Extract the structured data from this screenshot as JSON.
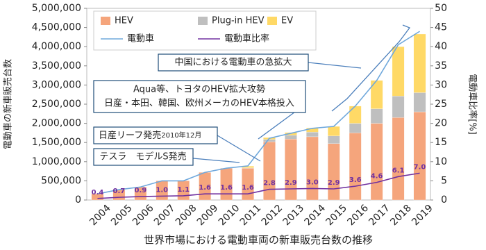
{
  "chart_data": {
    "type": "bar",
    "title": "世界市場における電動車両の新車販売台数の推移",
    "y_label": "電動車の新車販売台数",
    "y2_label": "電動車比率[%]",
    "categories": [
      "2004",
      "2005",
      "2006",
      "2007",
      "2008",
      "2009",
      "2010",
      "2011",
      "2012",
      "2013",
      "2014",
      "2015",
      "2016",
      "2017",
      "2018",
      "2019"
    ],
    "series": [
      {
        "name": "HEV",
        "type": "bar",
        "color": "#f5a57c",
        "values": [
          160000,
          270000,
          340000,
          500000,
          500000,
          720000,
          830000,
          830000,
          1520000,
          1590000,
          1650000,
          1470000,
          1750000,
          2000000,
          2150000,
          2300000
        ]
      },
      {
        "name": "Plug-in HEV",
        "type": "bar",
        "color": "#bfbfbf",
        "values": [
          0,
          0,
          0,
          0,
          0,
          0,
          0,
          10000,
          60000,
          100000,
          120000,
          200000,
          250000,
          380000,
          560000,
          500000
        ]
      },
      {
        "name": "EV",
        "type": "bar",
        "color": "#ffd966",
        "values": [
          0,
          0,
          0,
          0,
          0,
          0,
          0,
          45000,
          50000,
          70000,
          110000,
          250000,
          450000,
          740000,
          1290000,
          1530000
        ]
      },
      {
        "name": "電動車",
        "type": "line",
        "color": "#6fa8dc",
        "values": [
          160000,
          270000,
          340000,
          500000,
          500000,
          720000,
          830000,
          890000,
          1610000,
          1740000,
          1870000,
          1920000,
          2450000,
          3120000,
          4050000,
          4400000
        ]
      },
      {
        "name": "電動車比率",
        "type": "line",
        "axis": "y2",
        "color": "#7030a0",
        "values": [
          0.4,
          0.7,
          0.9,
          1.0,
          1.1,
          1.6,
          1.6,
          1.6,
          2.8,
          2.9,
          3.0,
          2.9,
          3.6,
          4.6,
          6.1,
          7.0
        ],
        "value_labels": [
          "0.4",
          "0.7",
          "0.9",
          "1.0",
          "1.1",
          "1.6",
          "1.6",
          "1.6",
          "2.8",
          "2.9",
          "3.0",
          "2.9",
          "3.6",
          "4.6",
          "6.1",
          "7.0"
        ]
      }
    ],
    "ylim": [
      0,
      5000000
    ],
    "yticks": [
      0,
      {
        "value": 500000,
        "label": "500,000"
      },
      {
        "value": 1000000,
        "label": "1,000,000"
      },
      {
        "value": 1500000,
        "label": "1,500,000"
      },
      {
        "value": 2000000,
        "label": "2,000,000"
      },
      {
        "value": 2500000,
        "label": "2,500,000"
      },
      {
        "value": 3000000,
        "label": "3,000,000"
      },
      {
        "value": 3500000,
        "label": "3,500,000"
      },
      {
        "value": 4000000,
        "label": "4,000,000"
      },
      {
        "value": 4500000,
        "label": "4,500,000"
      },
      {
        "value": 5000000,
        "label": "5,000,000"
      }
    ],
    "y2lim": [
      0,
      50
    ],
    "y2ticks": [
      0,
      5,
      10,
      15,
      20,
      25,
      30,
      35,
      40,
      45,
      50
    ],
    "annotations": [
      {
        "text": "中国における電動車の急拡大"
      },
      {
        "text": "Aqua等、トヨタのHEV拡大攻勢",
        "text2": "日産・本田、韓国、欧州メーカのHEV本格投入"
      },
      {
        "text": "日産リーフ発売",
        "note": "2010年12月"
      },
      {
        "text": "テスラ　モデルS発売"
      }
    ]
  }
}
